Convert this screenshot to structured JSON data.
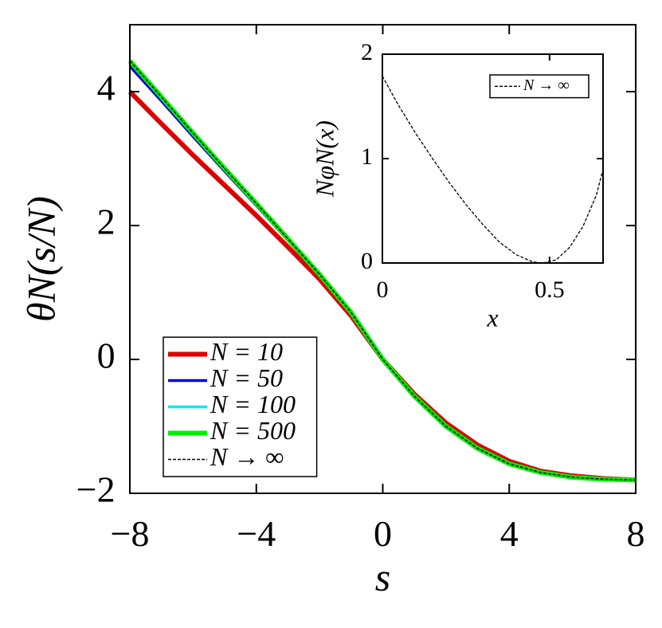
{
  "chart_data": [
    {
      "type": "line",
      "xlabel": "s",
      "ylabel": "θN(s/N)",
      "x": [
        -8,
        -7,
        -6,
        -5,
        -4,
        -3,
        -2,
        -1,
        0,
        1,
        2,
        3,
        4,
        5,
        6,
        7,
        8
      ],
      "xlim": [
        -8,
        8
      ],
      "ylim": [
        -2,
        5
      ],
      "xticks": [
        {
          "value": -8,
          "label": "−8"
        },
        {
          "value": -4,
          "label": "−4"
        },
        0,
        4,
        8
      ],
      "yticks": [
        {
          "value": -2,
          "label": "−2"
        },
        0,
        2,
        4
      ],
      "legend": "lower left",
      "series": [
        {
          "name": "N = 10",
          "color": "#dd0000",
          "values": [
            4.0,
            3.52,
            3.05,
            2.6,
            2.15,
            1.68,
            1.2,
            0.65,
            0,
            -0.52,
            -0.95,
            -1.28,
            -1.52,
            -1.67,
            -1.74,
            -1.78,
            -1.8
          ]
        },
        {
          "name": "N = 50",
          "color": "#0000dd",
          "values": [
            4.38,
            3.86,
            3.33,
            2.81,
            2.3,
            1.78,
            1.26,
            0.69,
            0,
            -0.55,
            -1.0,
            -1.33,
            -1.56,
            -1.69,
            -1.76,
            -1.79,
            -1.8
          ]
        },
        {
          "name": "N = 100",
          "color": "#00eeee",
          "values": [
            4.44,
            3.91,
            3.37,
            2.84,
            2.32,
            1.8,
            1.27,
            0.7,
            0,
            -0.55,
            -1.0,
            -1.33,
            -1.56,
            -1.69,
            -1.76,
            -1.79,
            -1.8
          ]
        },
        {
          "name": "N = 500",
          "color": "#00ee00",
          "values": [
            4.46,
            3.92,
            3.38,
            2.85,
            2.33,
            1.8,
            1.27,
            0.7,
            0,
            -0.55,
            -1.0,
            -1.33,
            -1.56,
            -1.69,
            -1.76,
            -1.79,
            -1.8
          ]
        },
        {
          "name": "N → ∞",
          "color": "#000000",
          "linestyle": "dashed",
          "values": [
            4.46,
            3.92,
            3.38,
            2.85,
            2.33,
            1.8,
            1.27,
            0.7,
            0,
            -0.55,
            -1.0,
            -1.33,
            -1.56,
            -1.69,
            -1.76,
            -1.79,
            -1.8
          ]
        }
      ]
    },
    {
      "type": "line",
      "xlabel": "x",
      "ylabel": "NφN(x)",
      "x": [
        0,
        0.05,
        0.1,
        0.15,
        0.2,
        0.25,
        0.3,
        0.35,
        0.4,
        0.45,
        0.48,
        0.52,
        0.56,
        0.6,
        0.64,
        0.66
      ],
      "xlim": [
        0,
        0.66
      ],
      "ylim": [
        0,
        2
      ],
      "xticks": [
        0,
        0.5
      ],
      "yticks": [
        0,
        1,
        2
      ],
      "legend": "upper right",
      "series": [
        {
          "name": "N → ∞",
          "color": "#000000",
          "linestyle": "dashed",
          "values": [
            1.79,
            1.5,
            1.24,
            1.0,
            0.77,
            0.56,
            0.37,
            0.2,
            0.08,
            0.01,
            0,
            0.03,
            0.15,
            0.35,
            0.65,
            0.9
          ]
        }
      ]
    }
  ]
}
